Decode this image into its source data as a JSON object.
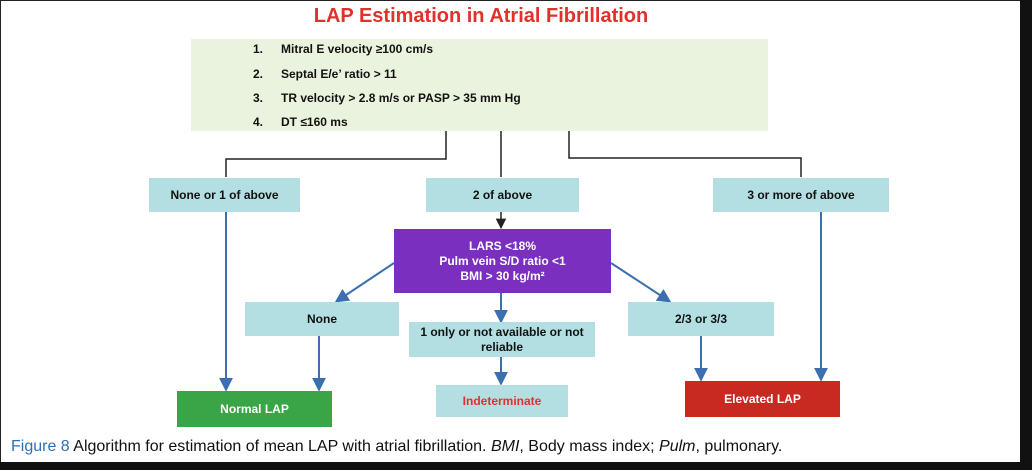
{
  "title": "LAP Estimation in Atrial Fibrillation",
  "criteria": [
    {
      "num": "1.",
      "text": "Mitral E velocity ≥100 cm/s"
    },
    {
      "num": "2.",
      "text": "Septal E/e’ ratio > 11"
    },
    {
      "num": "3.",
      "text": "TR velocity > 2.8 m/s or PASP > 35 mm Hg"
    },
    {
      "num": "4.",
      "text": "DT ≤160 ms"
    }
  ],
  "branches": {
    "none_or_one": "None or 1 of above",
    "two": "2 of above",
    "three_or_more": "3 or more of above"
  },
  "secondary": {
    "line1": "LARS <18%",
    "line2": "Pulm vein S/D ratio <1",
    "line3": "BMI > 30 kg/m²"
  },
  "secondary_outcomes": {
    "none": "None",
    "one_only": "1 only or not available or not reliable",
    "two_three": "2/3 or 3/3"
  },
  "results": {
    "normal": "Normal LAP",
    "indeterminate": "Indeterminate",
    "elevated": "Elevated LAP"
  },
  "caption": {
    "figure": "Figure 8",
    "text1": " Algorithm for estimation of mean LAP with atrial fibrillation. ",
    "abbr1": "BMI",
    "text2": ", Body mass index; ",
    "abbr2": "Pulm",
    "text3": ", pulmonary."
  },
  "colors": {
    "title": "#e0312b",
    "criteria_bg": "#eaf3de",
    "teal": "#b3dfe2",
    "purple": "#7b2fbe",
    "green": "#3aa547",
    "red": "#c82a22",
    "arrow": "#3b6fb0"
  }
}
